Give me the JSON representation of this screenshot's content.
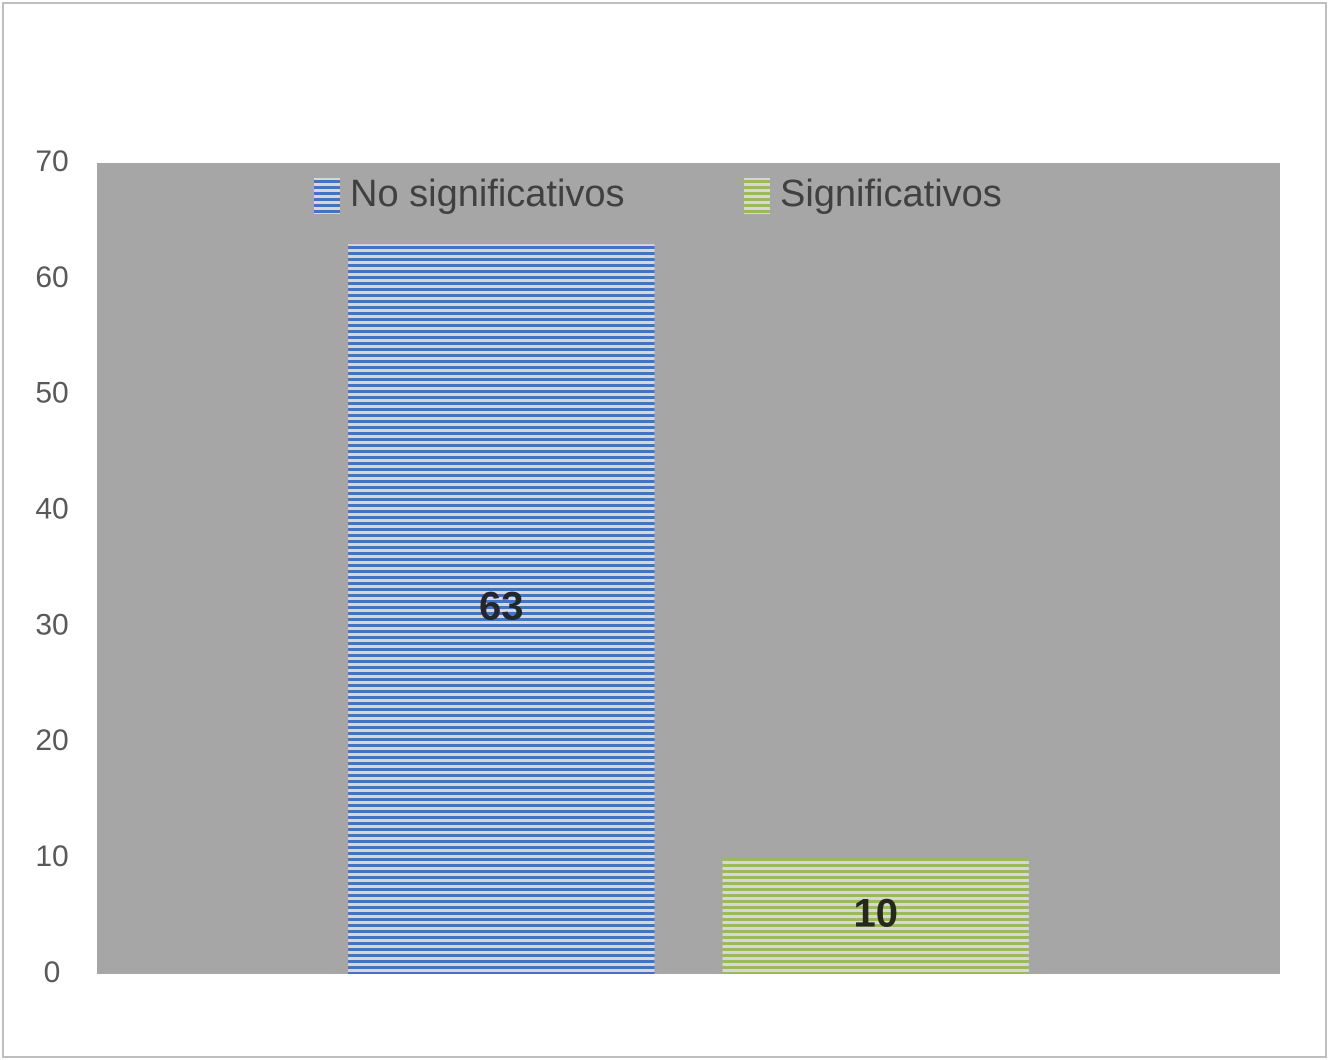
{
  "chart_data": {
    "type": "bar",
    "categories": [
      null
    ],
    "series": [
      {
        "name": "No significativos",
        "color": "#4472c4",
        "values": [
          63
        ]
      },
      {
        "name": "Significativos",
        "color": "#9bbb59",
        "values": [
          10
        ]
      }
    ],
    "ylim": [
      0,
      70
    ],
    "yticks": [
      0,
      10,
      20,
      30,
      40,
      50,
      60,
      70
    ],
    "legend": "top",
    "plot_background": "#a6a6a6"
  }
}
